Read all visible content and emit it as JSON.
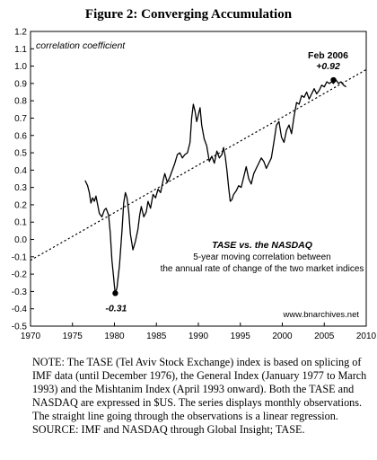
{
  "title": "Figure 2: Converging Accumulation",
  "chart_data": {
    "type": "line",
    "ylabel": "correlation coefficient",
    "xlim": [
      1970,
      2010
    ],
    "ylim": [
      -0.5,
      1.2
    ],
    "x_ticks": [
      1970,
      1975,
      1980,
      1985,
      1990,
      1995,
      2000,
      2005,
      2010
    ],
    "y_ticks": [
      -0.5,
      -0.4,
      -0.3,
      -0.2,
      -0.1,
      0.0,
      0.1,
      0.2,
      0.3,
      0.4,
      0.5,
      0.6,
      0.7,
      0.8,
      0.9,
      1.0,
      1.1,
      1.2
    ],
    "y_tick_labels": [
      "-0.5",
      "-0.4",
      "-0.3",
      "-0.2",
      "-0.1",
      "0.0",
      "0.1",
      "0.2",
      "0.3",
      "0.4",
      "0.5",
      "0.6",
      "0.7",
      "0.8",
      "0.9",
      "1.0",
      "1.1",
      "1.2"
    ],
    "grid": false,
    "series": [
      {
        "style": "solid",
        "color": "#000000",
        "x": [
          1976.5,
          1976.8,
          1977.0,
          1977.2,
          1977.4,
          1977.6,
          1977.8,
          1978.0,
          1978.2,
          1978.5,
          1978.8,
          1979.0,
          1979.3,
          1979.5,
          1979.7,
          1979.9,
          1980.0,
          1980.1,
          1980.3,
          1980.6,
          1980.9,
          1981.1,
          1981.3,
          1981.5,
          1981.7,
          1981.9,
          1982.2,
          1982.5,
          1982.8,
          1983.0,
          1983.2,
          1983.5,
          1983.8,
          1984.0,
          1984.3,
          1984.6,
          1984.9,
          1985.2,
          1985.5,
          1985.8,
          1986.0,
          1986.3,
          1986.6,
          1986.9,
          1987.2,
          1987.5,
          1987.8,
          1988.1,
          1988.4,
          1988.7,
          1989.0,
          1989.2,
          1989.4,
          1989.6,
          1989.8,
          1990.0,
          1990.2,
          1990.4,
          1990.7,
          1991.0,
          1991.3,
          1991.6,
          1991.9,
          1992.2,
          1992.5,
          1992.8,
          1993.0,
          1993.2,
          1993.4,
          1993.6,
          1993.8,
          1994.0,
          1994.2,
          1994.5,
          1994.8,
          1995.1,
          1995.4,
          1995.7,
          1996.0,
          1996.3,
          1996.6,
          1996.9,
          1997.2,
          1997.5,
          1997.8,
          1998.1,
          1998.4,
          1998.7,
          1999.0,
          1999.3,
          1999.6,
          1999.9,
          2000.2,
          2000.5,
          2000.8,
          2001.1,
          2001.4,
          2001.7,
          2002.0,
          2002.3,
          2002.6,
          2002.9,
          2003.2,
          2003.5,
          2003.8,
          2004.1,
          2004.4,
          2004.7,
          2005.0,
          2005.3,
          2005.6,
          2005.9,
          2006.1,
          2006.4,
          2006.7,
          2007.0,
          2007.3,
          2007.6
        ],
        "y": [
          0.34,
          0.31,
          0.27,
          0.21,
          0.24,
          0.22,
          0.25,
          0.2,
          0.15,
          0.13,
          0.17,
          0.18,
          0.14,
          0.04,
          -0.12,
          -0.22,
          -0.27,
          -0.31,
          -0.28,
          -0.15,
          0.05,
          0.21,
          0.27,
          0.24,
          0.16,
          0.03,
          -0.06,
          -0.01,
          0.06,
          0.14,
          0.19,
          0.13,
          0.16,
          0.22,
          0.18,
          0.26,
          0.24,
          0.29,
          0.27,
          0.34,
          0.38,
          0.33,
          0.36,
          0.4,
          0.44,
          0.49,
          0.5,
          0.47,
          0.49,
          0.5,
          0.56,
          0.7,
          0.78,
          0.74,
          0.68,
          0.72,
          0.76,
          0.66,
          0.58,
          0.54,
          0.45,
          0.48,
          0.44,
          0.51,
          0.47,
          0.49,
          0.53,
          0.48,
          0.4,
          0.3,
          0.22,
          0.23,
          0.26,
          0.28,
          0.31,
          0.3,
          0.36,
          0.42,
          0.35,
          0.32,
          0.38,
          0.41,
          0.44,
          0.47,
          0.45,
          0.41,
          0.44,
          0.47,
          0.56,
          0.66,
          0.68,
          0.59,
          0.56,
          0.63,
          0.66,
          0.61,
          0.71,
          0.79,
          0.78,
          0.83,
          0.82,
          0.85,
          0.81,
          0.84,
          0.87,
          0.84,
          0.86,
          0.89,
          0.88,
          0.91,
          0.9,
          0.91,
          0.9,
          0.92,
          0.9,
          0.91,
          0.89,
          0.88
        ]
      },
      {
        "style": "dotted",
        "color": "#000000",
        "x": [
          1970,
          2010
        ],
        "y": [
          -0.12,
          0.98
        ]
      }
    ],
    "annotations": [
      {
        "id": "legend_title",
        "text": "TASE vs. the NASDAQ"
      },
      {
        "id": "legend_line1",
        "text": "5-year moving correlation between"
      },
      {
        "id": "legend_line2",
        "text": "the annual rate of change of the two market indices"
      },
      {
        "id": "source_url",
        "text": "www.bnarchives.net"
      },
      {
        "id": "max_label",
        "text": "Feb 2006",
        "x": 2006.1,
        "y": 0.92
      },
      {
        "id": "max_value",
        "text": "+0.92",
        "x": 2006.1,
        "y": 0.92
      },
      {
        "id": "min_value",
        "text": "-0.31",
        "x": 1980.1,
        "y": -0.31
      }
    ]
  },
  "note": [
    "NOTE: The TASE (Tel Aviv Stock Exchange) index is based on splicing of IMF data (until December 1976), the General Index (January 1977 to March 1993) and the Mishtanim Index (April 1993 onward). Both the TASE and NASDAQ are expressed in $US. The series displays monthly observations. The straight line going through the observations is a linear regression.",
    "SOURCE: IMF and NASDAQ through Global Insight; TASE."
  ]
}
